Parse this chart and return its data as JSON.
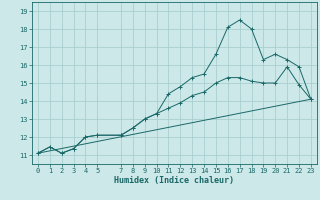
{
  "xlabel": "Humidex (Indice chaleur)",
  "bg_color": "#cce8e8",
  "grid_color": "#aacece",
  "line_color": "#1a6868",
  "xlim": [
    -0.5,
    23.5
  ],
  "ylim": [
    10.5,
    19.5
  ],
  "xticks": [
    0,
    1,
    2,
    3,
    4,
    5,
    7,
    8,
    9,
    10,
    11,
    12,
    13,
    14,
    15,
    16,
    17,
    18,
    19,
    20,
    21,
    22,
    23
  ],
  "yticks": [
    11,
    12,
    13,
    14,
    15,
    16,
    17,
    18,
    19
  ],
  "line1_x": [
    0,
    1,
    2,
    3,
    4,
    5,
    7,
    8,
    9,
    10,
    11,
    12,
    13,
    14,
    15,
    16,
    17,
    18,
    19,
    20,
    21,
    22,
    23
  ],
  "line1_y": [
    11.1,
    11.45,
    11.1,
    11.35,
    12.0,
    12.1,
    12.1,
    12.5,
    13.0,
    13.3,
    14.4,
    14.8,
    15.3,
    15.5,
    16.6,
    18.1,
    18.5,
    18.0,
    16.3,
    16.6,
    16.3,
    15.9,
    14.1
  ],
  "line2_x": [
    0,
    1,
    2,
    3,
    4,
    5,
    7,
    8,
    9,
    10,
    11,
    12,
    13,
    14,
    15,
    16,
    17,
    18,
    19,
    20,
    21,
    22,
    23
  ],
  "line2_y": [
    11.1,
    11.45,
    11.1,
    11.35,
    12.0,
    12.1,
    12.1,
    12.5,
    13.0,
    13.3,
    13.6,
    13.9,
    14.3,
    14.5,
    15.0,
    15.3,
    15.3,
    15.1,
    15.0,
    15.0,
    15.9,
    14.9,
    14.1
  ],
  "line3_x": [
    0,
    23
  ],
  "line3_y": [
    11.1,
    14.1
  ],
  "tick_fontsize": 5.0,
  "xlabel_fontsize": 6.0
}
